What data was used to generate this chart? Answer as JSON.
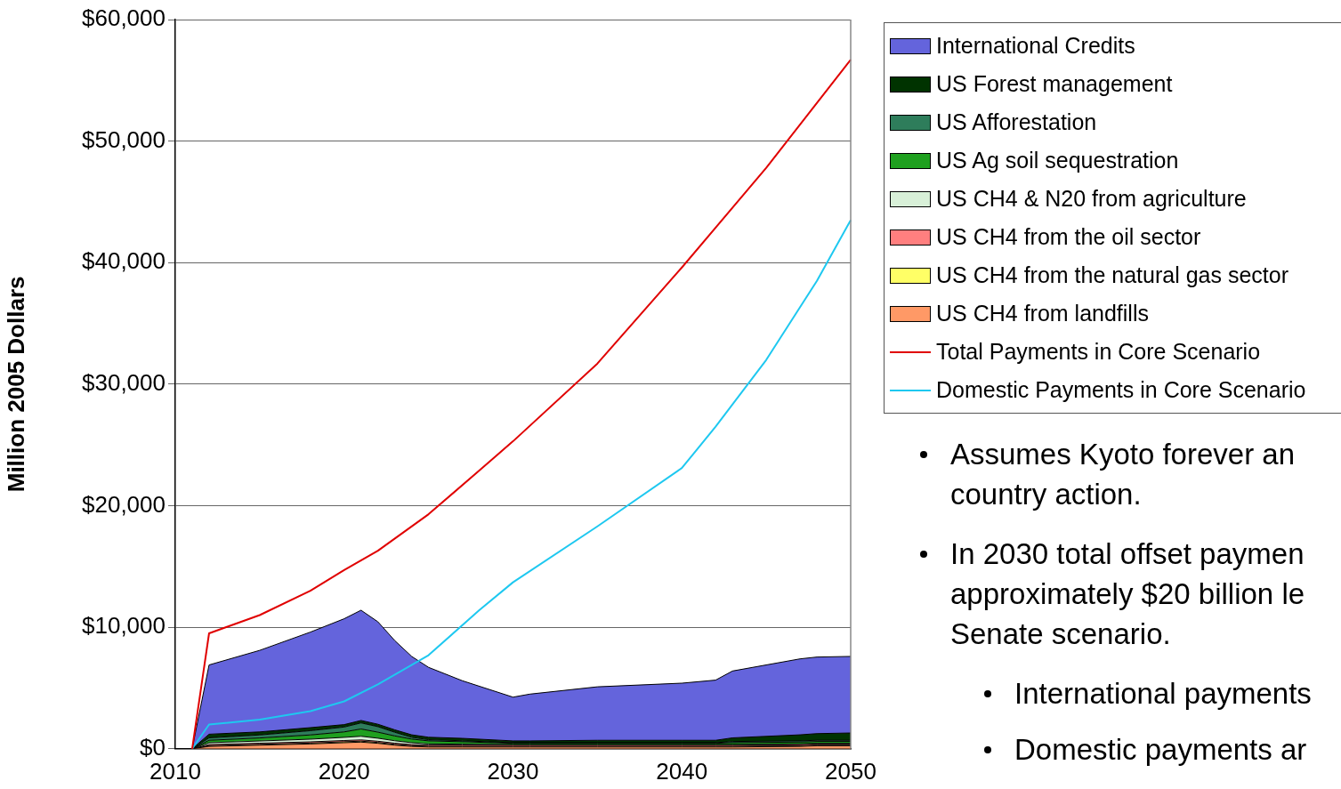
{
  "chart_data": {
    "type": "area",
    "stacked": true,
    "ylabel": "Million 2005 Dollars",
    "legend": "top right",
    "grid": "y",
    "x": [
      2011,
      2012,
      2015,
      2018,
      2020,
      2021,
      2022,
      2023,
      2024,
      2025,
      2027,
      2030,
      2031,
      2035,
      2040,
      2042,
      2043,
      2047,
      2048,
      2050
    ],
    "xlim": [
      2010,
      2050
    ],
    "xticks": [
      2010,
      2020,
      2030,
      2040,
      2050
    ],
    "ylim": [
      0,
      60000
    ],
    "yticks": [
      {
        "value": 0,
        "label": "$0"
      },
      {
        "value": 10000,
        "label": "$10,000"
      },
      {
        "value": 20000,
        "label": "$20,000"
      },
      {
        "value": 30000,
        "label": "$30,000"
      },
      {
        "value": 40000,
        "label": "$40,000"
      },
      {
        "value": 50000,
        "label": "$50,000"
      },
      {
        "value": 60000,
        "label": "$60,000"
      }
    ],
    "series": [
      {
        "name": "US CH4 from landfills",
        "color": "#ff9966",
        "values": [
          0,
          200,
          300,
          400,
          500,
          550,
          450,
          300,
          200,
          150,
          150,
          150,
          150,
          150,
          150,
          150,
          150,
          200,
          250,
          250
        ]
      },
      {
        "name": "US CH4 from the natural gas sector",
        "color": "#ffff66",
        "values": [
          0,
          50,
          60,
          70,
          80,
          80,
          70,
          60,
          50,
          50,
          50,
          50,
          50,
          50,
          50,
          50,
          50,
          50,
          50,
          50
        ]
      },
      {
        "name": "US CH4 from the oil sector",
        "color": "#ff7f7f",
        "values": [
          0,
          100,
          100,
          100,
          100,
          100,
          100,
          100,
          100,
          100,
          100,
          100,
          100,
          100,
          100,
          100,
          100,
          100,
          100,
          100
        ]
      },
      {
        "name": "US CH4 & N20 from agriculture",
        "color": "#d8f0d8",
        "values": [
          0,
          150,
          180,
          220,
          260,
          300,
          250,
          200,
          150,
          100,
          80,
          50,
          50,
          50,
          50,
          50,
          50,
          50,
          50,
          50
        ]
      },
      {
        "name": "US Ag soil sequestration",
        "color": "#1fa01f",
        "values": [
          0,
          200,
          250,
          350,
          450,
          600,
          500,
          400,
          300,
          250,
          200,
          100,
          100,
          100,
          100,
          100,
          150,
          150,
          150,
          150
        ]
      },
      {
        "name": "US Afforestation",
        "color": "#2e7d5b",
        "values": [
          0,
          200,
          250,
          350,
          400,
          500,
          450,
          300,
          150,
          100,
          80,
          50,
          50,
          50,
          50,
          50,
          100,
          100,
          100,
          100
        ]
      },
      {
        "name": "US Forest management",
        "color": "#003300",
        "values": [
          0,
          300,
          250,
          250,
          200,
          200,
          200,
          200,
          200,
          200,
          200,
          150,
          150,
          200,
          200,
          200,
          300,
          500,
          550,
          600
        ]
      },
      {
        "name": "International Credits",
        "color": "#6464dc",
        "values": [
          0,
          5700,
          6710,
          7860,
          8710,
          9070,
          8430,
          7340,
          6450,
          5750,
          4740,
          3600,
          3850,
          4400,
          4700,
          4950,
          5500,
          6250,
          6300,
          6300
        ]
      },
      {
        "name": "Total Payments in Core Scenario",
        "type": "line",
        "color": "#e00000",
        "x": [
          2011,
          2012,
          2015,
          2018,
          2020,
          2022,
          2025,
          2028,
          2030,
          2035,
          2040,
          2045,
          2050
        ],
        "values": [
          0,
          9500,
          11000,
          13000,
          14700,
          16300,
          19300,
          22900,
          25300,
          31700,
          39600,
          47800,
          56700
        ]
      },
      {
        "name": "Domestic Payments in Core Scenario",
        "type": "line",
        "color": "#1ec8f0",
        "x": [
          2011,
          2012,
          2015,
          2018,
          2020,
          2022,
          2025,
          2028,
          2030,
          2035,
          2040,
          2042,
          2045,
          2048,
          2050
        ],
        "values": [
          0,
          2000,
          2400,
          3100,
          3900,
          5300,
          7700,
          11400,
          13700,
          18300,
          23100,
          26500,
          32000,
          38500,
          43500
        ]
      }
    ],
    "annotations": [
      "Assumes Kyoto forever an\ncountry action.",
      "In 2030 total offset paymen\napproximately $20 billion le\nSenate scenario.",
      "International payments",
      "Domestic payments ar"
    ]
  }
}
